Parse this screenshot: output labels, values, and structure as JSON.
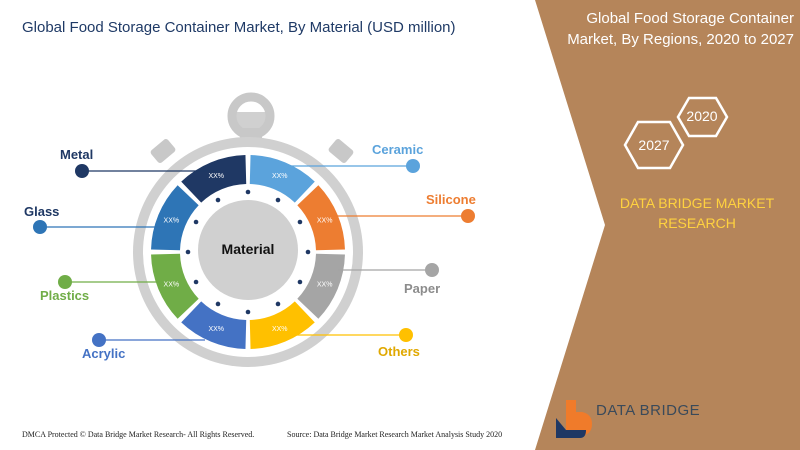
{
  "header": {
    "title": "Global Food Storage Container Market, By Material (USD million)"
  },
  "right_panel": {
    "title": "Global Food Storage Container Market, By Regions, 2020 to 2027",
    "year_start": "2020",
    "year_end": "2027",
    "brand": "DATA BRIDGE MARKET RESEARCH"
  },
  "dial": {
    "center_label": "Material",
    "segment_value": "XX%",
    "segments": [
      {
        "name": "Ceramic",
        "color": "#5ba3dc"
      },
      {
        "name": "Silicone",
        "color": "#ed7d31"
      },
      {
        "name": "Paper",
        "color": "#a5a5a5"
      },
      {
        "name": "Others",
        "color": "#ffc000"
      },
      {
        "name": "Acrylic",
        "color": "#4472c4"
      },
      {
        "name": "Plastics",
        "color": "#70ad47"
      },
      {
        "name": "Glass",
        "color": "#2e75b6"
      },
      {
        "name": "Metal",
        "color": "#1f3864"
      }
    ]
  },
  "labels": {
    "metal": "Metal",
    "glass": "Glass",
    "plastics": "Plastics",
    "acrylic": "Acrylic",
    "ceramic": "Ceramic",
    "silicone": "Silicone",
    "paper": "Paper",
    "others": "Others"
  },
  "footer": {
    "left": "DMCA Protected © Data Bridge Market Research- All Rights Reserved.",
    "source": "Source: Data Bridge Market Research Market Analysis Study 2020"
  },
  "logo": {
    "text": "DATA BRIDGE"
  },
  "colors": {
    "panel_brown": "#b5855a",
    "brand_yellow": "#ffd23f",
    "title_navy": "#1f3a66"
  }
}
